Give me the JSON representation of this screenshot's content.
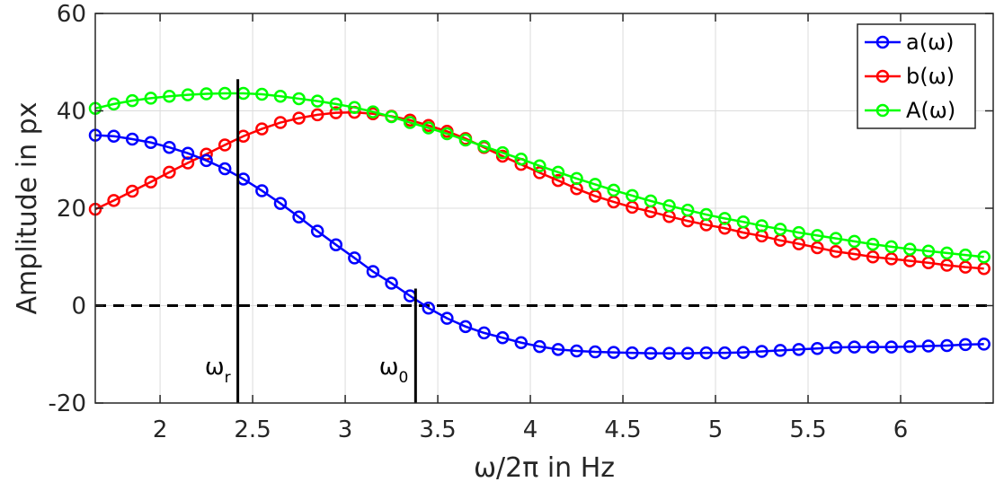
{
  "chart_data": {
    "type": "line",
    "xlabel": "ω/2π in Hz",
    "ylabel": "Amplitude in px",
    "xlim": [
      1.65,
      6.5
    ],
    "ylim": [
      -20,
      60
    ],
    "xticks": [
      2,
      2.5,
      3,
      3.5,
      4,
      4.5,
      5,
      5.5,
      6
    ],
    "xtick_labels": [
      "2",
      "2.5",
      "3",
      "3.5",
      "4",
      "4.5",
      "5",
      "5.5",
      "6"
    ],
    "yticks": [
      -20,
      0,
      20,
      40,
      60
    ],
    "ytick_labels": [
      "-20",
      "0",
      "20",
      "40",
      "60"
    ],
    "grid": true,
    "legend_position": "top-right",
    "x": [
      1.65,
      1.75,
      1.85,
      1.95,
      2.05,
      2.15,
      2.25,
      2.35,
      2.45,
      2.55,
      2.65,
      2.75,
      2.85,
      2.95,
      3.05,
      3.15,
      3.25,
      3.35,
      3.45,
      3.55,
      3.65,
      3.75,
      3.85,
      3.95,
      4.05,
      4.15,
      4.25,
      4.35,
      4.45,
      4.55,
      4.65,
      4.75,
      4.85,
      4.95,
      5.05,
      5.15,
      5.25,
      5.35,
      5.45,
      5.55,
      5.65,
      5.75,
      5.85,
      5.95,
      6.05,
      6.15,
      6.25,
      6.35,
      6.45
    ],
    "series": [
      {
        "name": "a(ω)",
        "color": "#0000ff",
        "values": [
          35,
          34.8,
          34.2,
          33.5,
          32.5,
          31.3,
          29.8,
          28.1,
          26,
          23.6,
          21,
          18.2,
          15.3,
          12.5,
          9.8,
          7,
          4.6,
          2,
          -0.5,
          -2.6,
          -4.3,
          -5.6,
          -6.6,
          -7.6,
          -8.4,
          -9,
          -9.3,
          -9.5,
          -9.6,
          -9.7,
          -9.8,
          -9.8,
          -9.8,
          -9.7,
          -9.7,
          -9.6,
          -9.4,
          -9.2,
          -9,
          -8.8,
          -8.6,
          -8.5,
          -8.5,
          -8.5,
          -8.4,
          -8.3,
          -8.2,
          -8,
          -7.9
        ]
      },
      {
        "name": "b(ω)",
        "color": "#ff0000",
        "values": [
          19.8,
          21.6,
          23.5,
          25.4,
          27.4,
          29.3,
          31.1,
          33,
          34.8,
          36.3,
          37.6,
          38.5,
          39.2,
          39.6,
          39.7,
          39.4,
          38.9,
          38.1,
          37,
          35.8,
          34.3,
          32.5,
          30.7,
          29,
          27.3,
          25.7,
          24,
          22.5,
          21.3,
          20.2,
          19.3,
          18.3,
          17.4,
          16.6,
          15.9,
          15,
          14.3,
          13.4,
          12.7,
          11.9,
          11.1,
          10.6,
          10,
          9.6,
          9.2,
          8.8,
          8.3,
          7.9,
          7.6
        ]
      },
      {
        "name": "A(ω)",
        "color": "#00ff00",
        "values": [
          40.5,
          41.4,
          42.1,
          42.6,
          43,
          43.3,
          43.5,
          43.6,
          43.6,
          43.4,
          43,
          42.5,
          42,
          41.4,
          40.7,
          39.8,
          38.8,
          37.6,
          36.5,
          35.3,
          34,
          32.7,
          31.4,
          30.1,
          28.7,
          27.4,
          26.1,
          24.9,
          23.7,
          22.6,
          21.5,
          20.5,
          19.6,
          18.7,
          17.9,
          17.2,
          16.4,
          15.7,
          15,
          14.4,
          13.8,
          13.2,
          12.6,
          12.1,
          11.6,
          11.2,
          10.8,
          10.4,
          10
        ]
      }
    ],
    "annotations": [
      {
        "label": "ω",
        "subscript": "r",
        "x": 2.42
      },
      {
        "label": "ω",
        "subscript": "0",
        "x": 3.38
      }
    ]
  }
}
